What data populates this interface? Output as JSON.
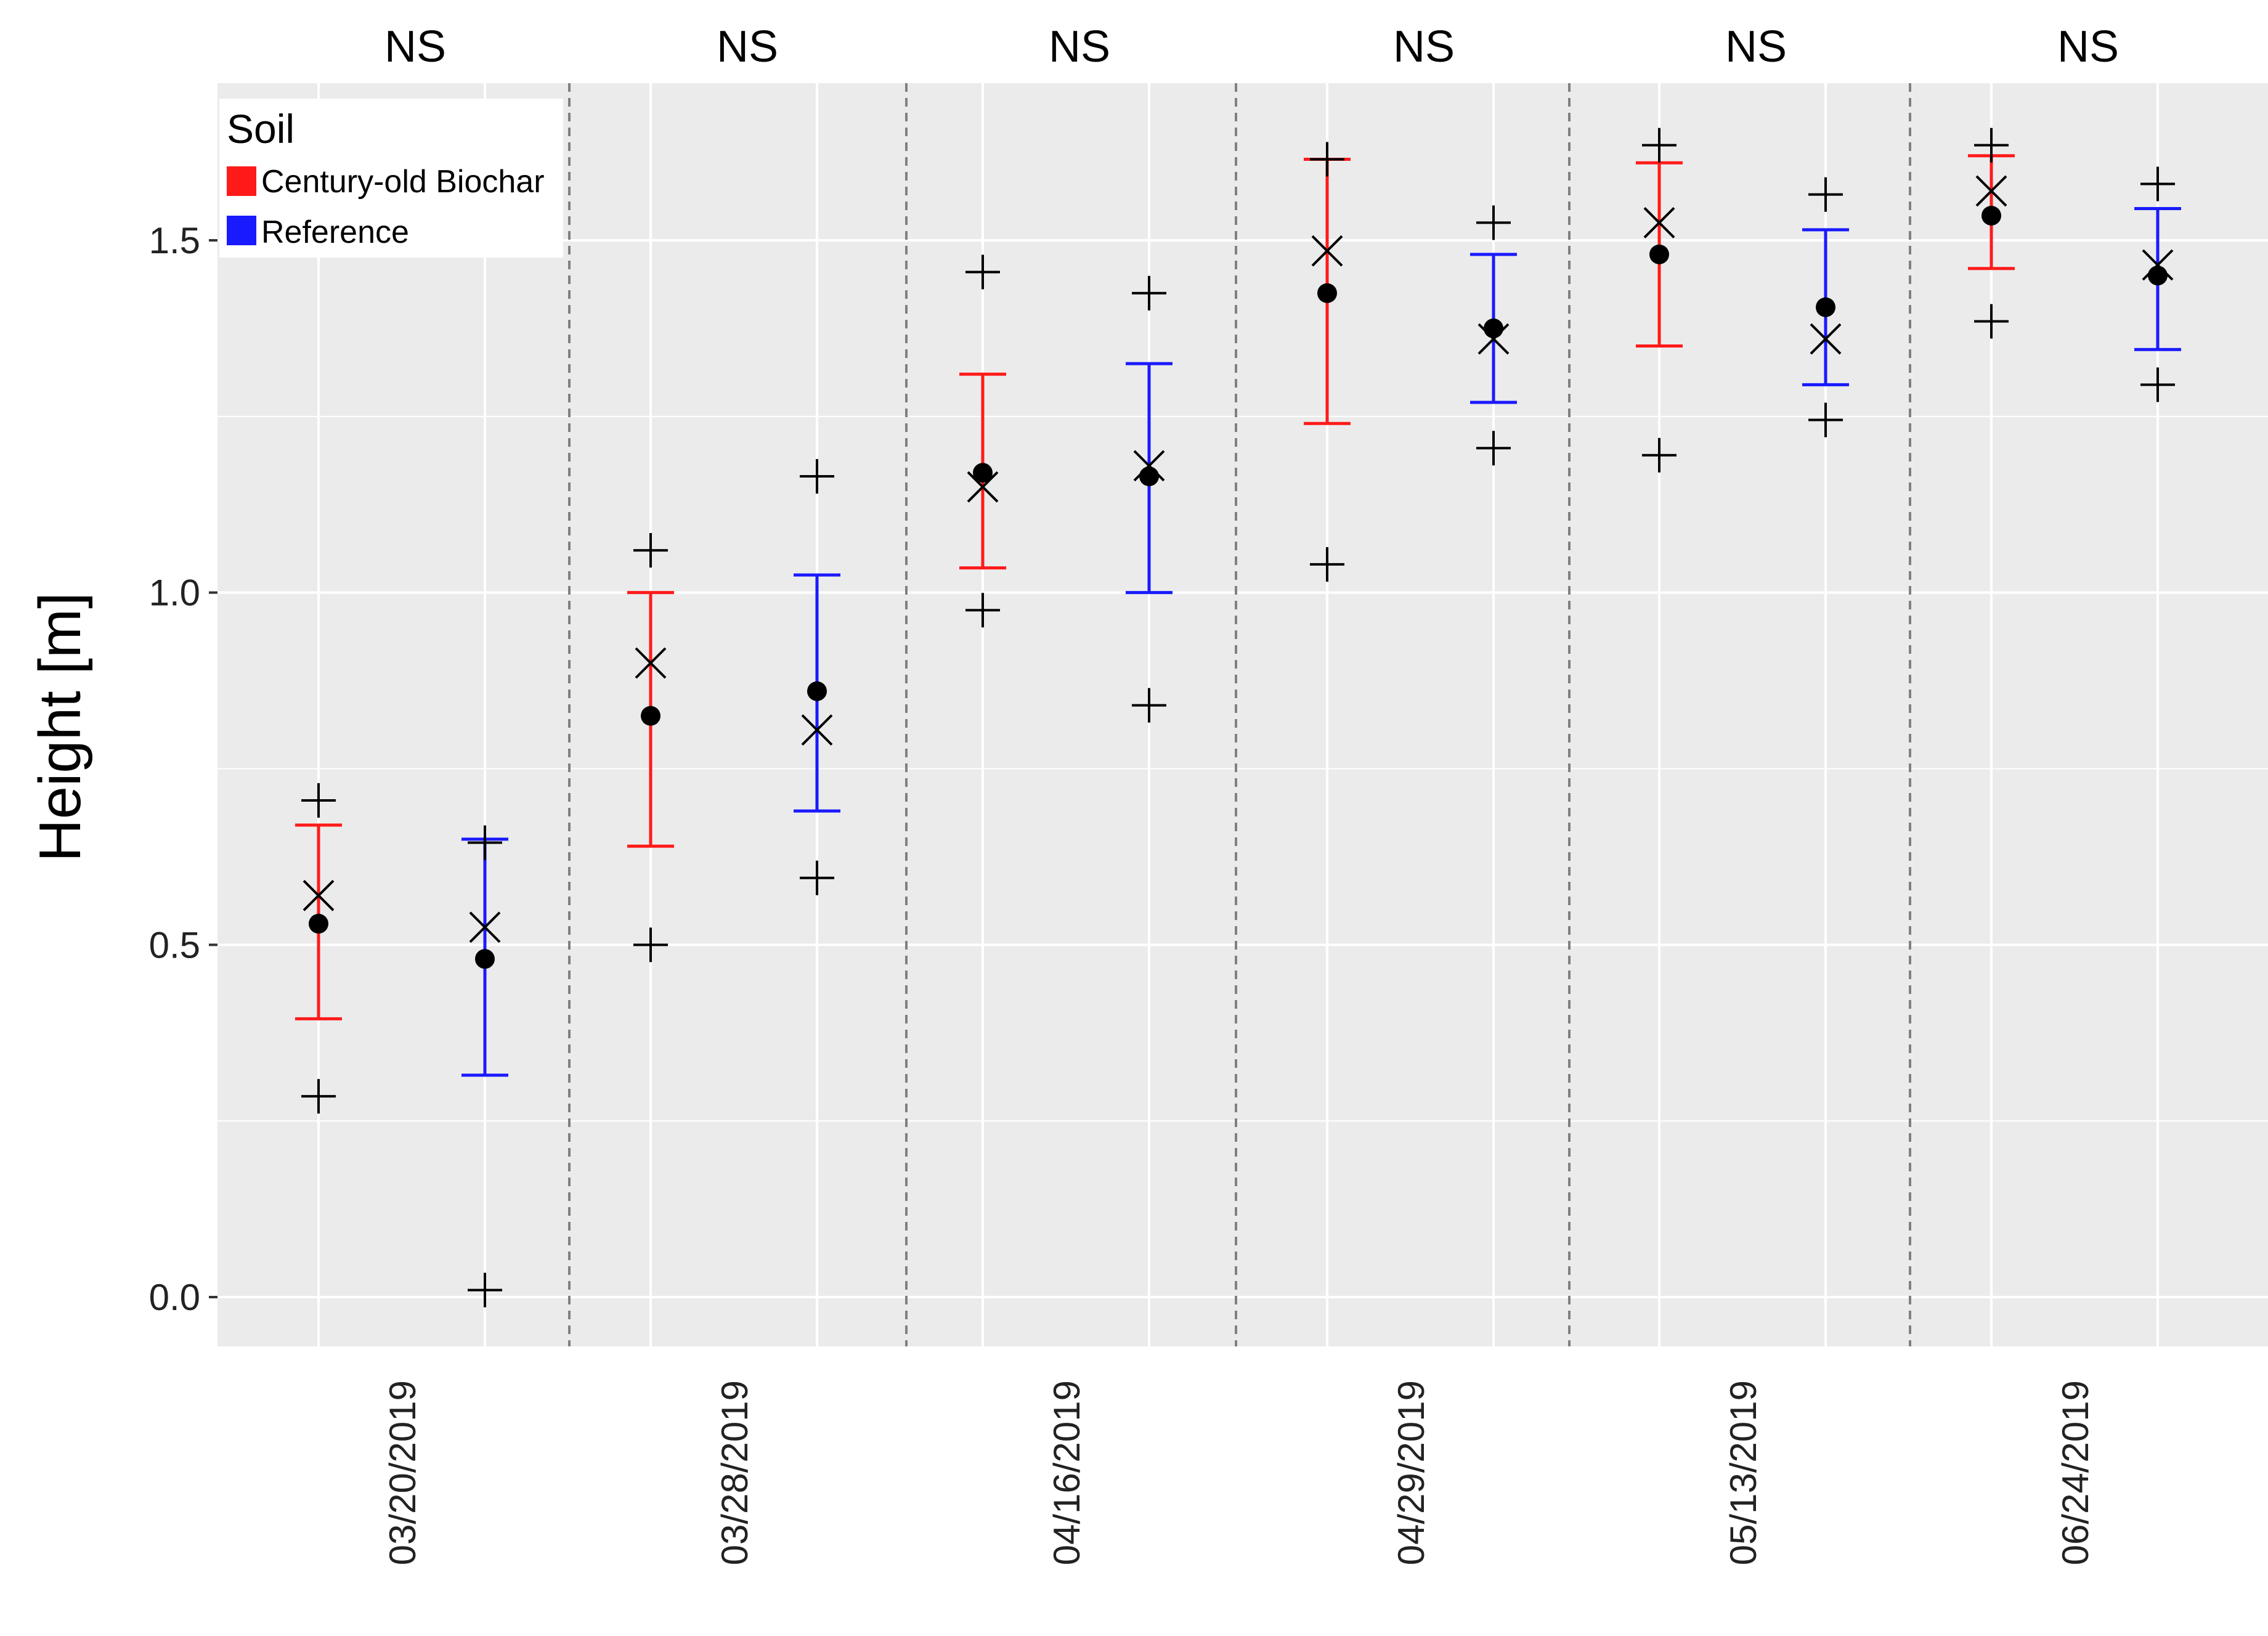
{
  "chart_data": {
    "type": "errorbar",
    "title": "",
    "xlabel": "",
    "ylabel": "Height [m]",
    "ylim": [
      -0.07,
      1.73
    ],
    "yticks": [
      0.0,
      0.5,
      1.0,
      1.5
    ],
    "ytick_labels": [
      "0.0",
      "0.5",
      "1.0",
      "1.5"
    ],
    "grid": true,
    "categories": [
      "03/20/2019",
      "03/28/2019",
      "04/16/2019",
      "04/29/2019",
      "05/13/2019",
      "06/24/2019"
    ],
    "significance": [
      "NS",
      "NS",
      "NS",
      "NS",
      "NS",
      "NS"
    ],
    "legend": {
      "title": "Soil",
      "position": "top-left",
      "entries": [
        {
          "name": "Century-old Biochar",
          "color": "#ff1a1a"
        },
        {
          "name": "Reference",
          "color": "#1a1aff"
        }
      ]
    },
    "series": [
      {
        "name": "Century-old Biochar",
        "color": "#ff1a1a",
        "mean": [
          0.53,
          0.825,
          1.17,
          1.425,
          1.48,
          1.535
        ],
        "err_low": [
          0.395,
          0.64,
          1.035,
          1.24,
          1.35,
          1.46
        ],
        "err_high": [
          0.67,
          1.0,
          1.31,
          1.615,
          1.61,
          1.62
        ],
        "x_marker": [
          0.57,
          0.9,
          1.15,
          1.485,
          1.525,
          1.57
        ],
        "max": [
          0.705,
          1.06,
          1.455,
          1.615,
          1.635,
          1.635
        ],
        "min": [
          0.285,
          0.5,
          0.975,
          1.04,
          1.195,
          1.385
        ]
      },
      {
        "name": "Reference",
        "color": "#1a1aff",
        "mean": [
          0.48,
          0.86,
          1.165,
          1.375,
          1.405,
          1.45
        ],
        "err_low": [
          0.315,
          0.69,
          1.0,
          1.27,
          1.295,
          1.345
        ],
        "err_high": [
          0.65,
          1.025,
          1.325,
          1.48,
          1.515,
          1.545
        ],
        "x_marker": [
          0.525,
          0.805,
          1.18,
          1.36,
          1.36,
          1.465
        ],
        "max": [
          0.645,
          1.165,
          1.425,
          1.525,
          1.565,
          1.58
        ],
        "min": [
          0.01,
          0.595,
          0.84,
          1.205,
          1.245,
          1.295
        ]
      }
    ]
  }
}
